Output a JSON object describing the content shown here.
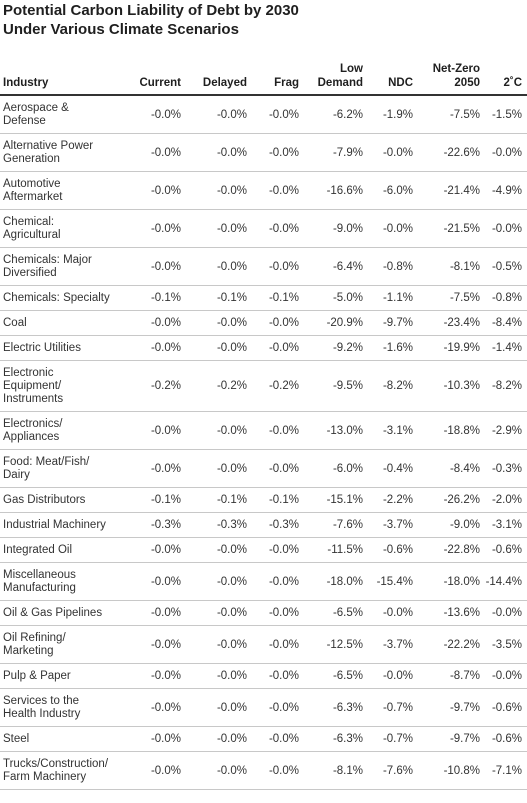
{
  "title": "Potential Carbon Liability of Debt by 2030\nUnder Various Climate Scenarios",
  "columns": [
    "Industry",
    "Current",
    "Delayed",
    "Frag",
    "Low\nDemand",
    "NDC",
    "Net-Zero\n2050",
    "2˚C"
  ],
  "rows": [
    {
      "industry": "Aerospace &\nDefense",
      "values": [
        "-0.0%",
        "-0.0%",
        "-0.0%",
        "-6.2%",
        "-1.9%",
        "-7.5%",
        "-1.5%"
      ]
    },
    {
      "industry": "Alternative Power\nGeneration",
      "values": [
        "-0.0%",
        "-0.0%",
        "-0.0%",
        "-7.9%",
        "-0.0%",
        "-22.6%",
        "-0.0%"
      ]
    },
    {
      "industry": "Automotive\nAftermarket",
      "values": [
        "-0.0%",
        "-0.0%",
        "-0.0%",
        "-16.6%",
        "-6.0%",
        "-21.4%",
        "-4.9%"
      ]
    },
    {
      "industry": "Chemical:\nAgricultural",
      "values": [
        "-0.0%",
        "-0.0%",
        "-0.0%",
        "-9.0%",
        "-0.0%",
        "-21.5%",
        "-0.0%"
      ]
    },
    {
      "industry": "Chemicals: Major\nDiversified",
      "values": [
        "-0.0%",
        "-0.0%",
        "-0.0%",
        "-6.4%",
        "-0.8%",
        "-8.1%",
        "-0.5%"
      ]
    },
    {
      "industry": "Chemicals: Specialty",
      "values": [
        "-0.1%",
        "-0.1%",
        "-0.1%",
        "-5.0%",
        "-1.1%",
        "-7.5%",
        "-0.8%"
      ]
    },
    {
      "industry": "Coal",
      "values": [
        "-0.0%",
        "-0.0%",
        "-0.0%",
        "-20.9%",
        "-9.7%",
        "-23.4%",
        "-8.4%"
      ]
    },
    {
      "industry": "Electric Utilities",
      "values": [
        "-0.0%",
        "-0.0%",
        "-0.0%",
        "-9.2%",
        "-1.6%",
        "-19.9%",
        "-1.4%"
      ]
    },
    {
      "industry": "Electronic\nEquipment/\nInstruments",
      "values": [
        "-0.2%",
        "-0.2%",
        "-0.2%",
        "-9.5%",
        "-8.2%",
        "-10.3%",
        "-8.2%"
      ]
    },
    {
      "industry": "Electronics/\nAppliances",
      "values": [
        "-0.0%",
        "-0.0%",
        "-0.0%",
        "-13.0%",
        "-3.1%",
        "-18.8%",
        "-2.9%"
      ]
    },
    {
      "industry": "Food: Meat/Fish/\nDairy",
      "values": [
        "-0.0%",
        "-0.0%",
        "-0.0%",
        "-6.0%",
        "-0.4%",
        "-8.4%",
        "-0.3%"
      ]
    },
    {
      "industry": "Gas Distributors",
      "values": [
        "-0.1%",
        "-0.1%",
        "-0.1%",
        "-15.1%",
        "-2.2%",
        "-26.2%",
        "-2.0%"
      ]
    },
    {
      "industry": "Industrial Machinery",
      "values": [
        "-0.3%",
        "-0.3%",
        "-0.3%",
        "-7.6%",
        "-3.7%",
        "-9.0%",
        "-3.1%"
      ]
    },
    {
      "industry": "Integrated Oil",
      "values": [
        "-0.0%",
        "-0.0%",
        "-0.0%",
        "-11.5%",
        "-0.6%",
        "-22.8%",
        "-0.6%"
      ]
    },
    {
      "industry": "Miscellaneous\nManufacturing",
      "values": [
        "-0.0%",
        "-0.0%",
        "-0.0%",
        "-18.0%",
        "-15.4%",
        "-18.0%",
        "-14.4%"
      ]
    },
    {
      "industry": "Oil & Gas Pipelines",
      "values": [
        "-0.0%",
        "-0.0%",
        "-0.0%",
        "-6.5%",
        "-0.0%",
        "-13.6%",
        "-0.0%"
      ]
    },
    {
      "industry": "Oil Refining/\nMarketing",
      "values": [
        "-0.0%",
        "-0.0%",
        "-0.0%",
        "-12.5%",
        "-3.7%",
        "-22.2%",
        "-3.5%"
      ]
    },
    {
      "industry": "Pulp & Paper",
      "values": [
        "-0.0%",
        "-0.0%",
        "-0.0%",
        "-6.5%",
        "-0.0%",
        "-8.7%",
        "-0.0%"
      ]
    },
    {
      "industry": "Services to the\nHealth Industry",
      "values": [
        "-0.0%",
        "-0.0%",
        "-0.0%",
        "-6.3%",
        "-0.7%",
        "-9.7%",
        "-0.6%"
      ]
    },
    {
      "industry": "Steel",
      "values": [
        "-0.0%",
        "-0.0%",
        "-0.0%",
        "-6.3%",
        "-0.7%",
        "-9.7%",
        "-0.6%"
      ]
    },
    {
      "industry": "Trucks/Construction/\nFarm Machinery",
      "values": [
        "-0.0%",
        "-0.0%",
        "-0.0%",
        "-8.1%",
        "-7.6%",
        "-10.8%",
        "-7.1%"
      ]
    }
  ]
}
